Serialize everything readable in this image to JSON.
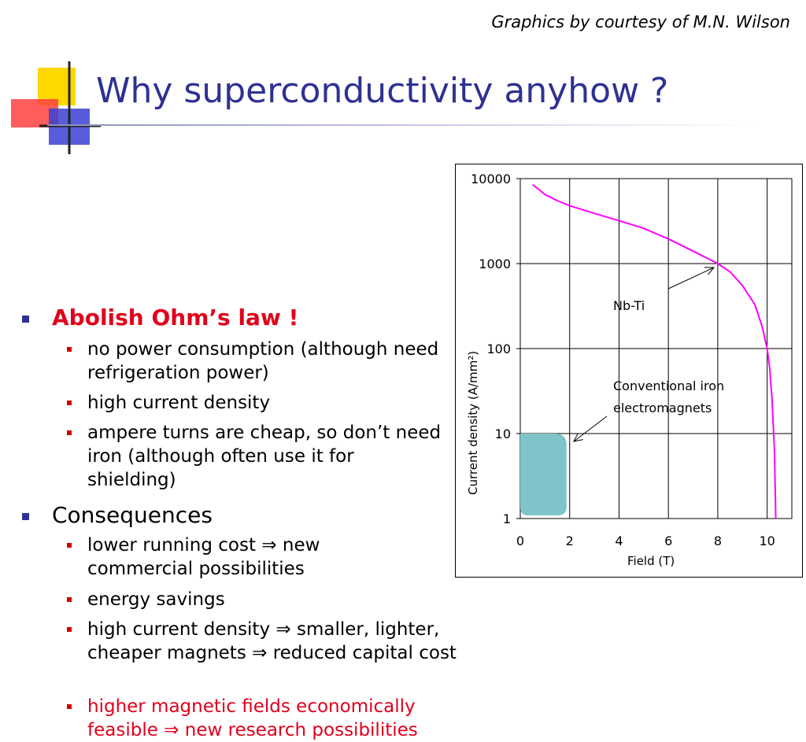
{
  "credit": "Graphics by courtesy of M.N. Wilson",
  "title": "Why superconductivity anyhow ?",
  "sections": [
    {
      "heading": "Abolish Ohm’s law !",
      "items": [
        "no power consumption (although need refrigeration power)",
        "high current density",
        "ampere turns are cheap, so don’t need iron (although often use it for shielding)"
      ]
    },
    {
      "heading": "Consequences",
      "items": [
        "lower running cost ⇒ new commercial possibilities",
        "energy savings",
        "high current density ⇒ smaller, lighter, cheaper magnets ⇒ reduced capital cost",
        "higher magnetic fields economically feasible ⇒ new research possibilities"
      ]
    }
  ],
  "colors": {
    "title": "#2e3192",
    "emphasis": "#e0001b",
    "nbti_curve": "#ff00ff",
    "iron_region": "#7fc4c9"
  },
  "chart_data": {
    "type": "line",
    "xlabel": "Field  (T)",
    "ylabel": "Current density (A/mm²)",
    "xlim": [
      0,
      11
    ],
    "ylim": [
      1,
      10000
    ],
    "yscale": "log",
    "xticks": [
      "0",
      "2",
      "4",
      "6",
      "8",
      "10"
    ],
    "yticks": [
      "1",
      "10",
      "100",
      "1000",
      "10000"
    ],
    "grid": true,
    "series": [
      {
        "name": "Nb-Ti",
        "points": [
          [
            0.5,
            8500
          ],
          [
            1,
            6500
          ],
          [
            1.5,
            5500
          ],
          [
            2,
            4800
          ],
          [
            3,
            3900
          ],
          [
            4,
            3200
          ],
          [
            5,
            2600
          ],
          [
            6,
            1950
          ],
          [
            7,
            1400
          ],
          [
            8,
            1000
          ],
          [
            8.5,
            800
          ],
          [
            9,
            550
          ],
          [
            9.5,
            330
          ],
          [
            9.8,
            180
          ],
          [
            10,
            100
          ],
          [
            10.1,
            60
          ],
          [
            10.2,
            25
          ],
          [
            10.3,
            6
          ],
          [
            10.35,
            1
          ]
        ]
      },
      {
        "name": "Conventional iron electromagnets",
        "region": {
          "x": [
            0,
            2
          ],
          "y": [
            1,
            10
          ]
        }
      }
    ],
    "annotations": [
      "Nb-Ti",
      "Conventional iron",
      "electromagnets"
    ]
  }
}
